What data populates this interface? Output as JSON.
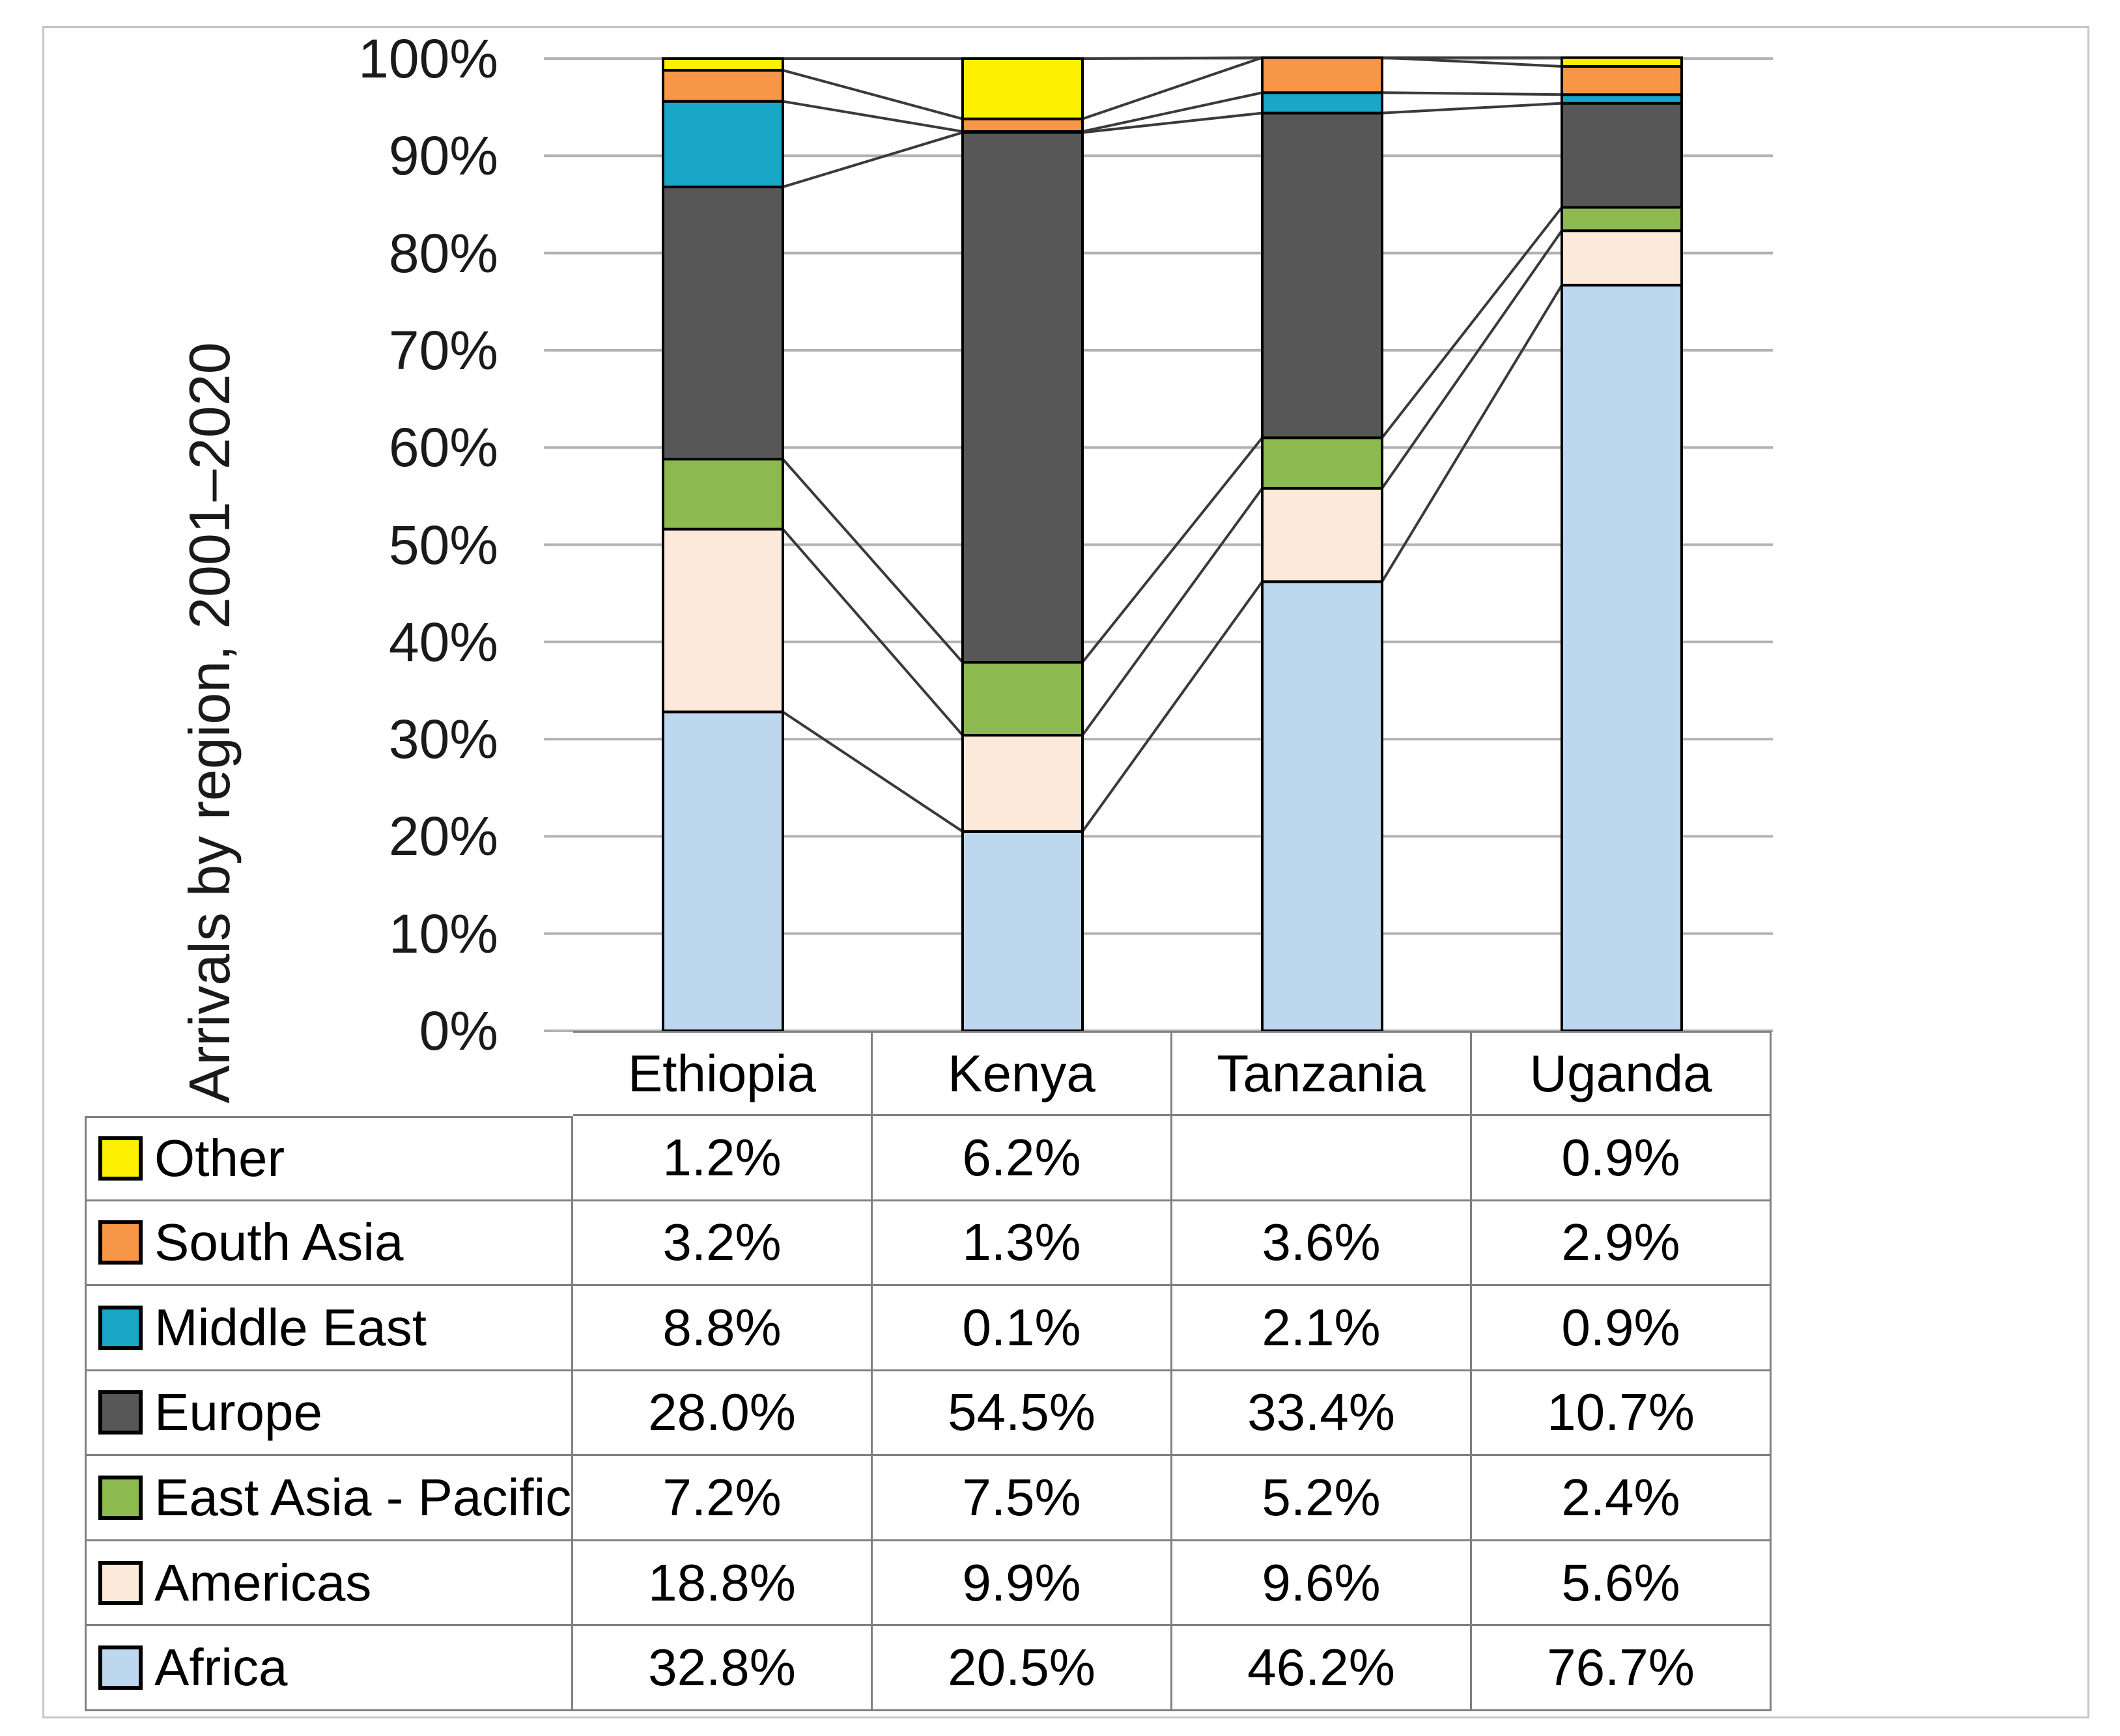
{
  "y_axis": {
    "title": "Arrivals by region, 2001–2020",
    "tick_labels": [
      "0%",
      "10%",
      "20%",
      "30%",
      "40%",
      "50%",
      "60%",
      "70%",
      "80%",
      "90%",
      "100%"
    ]
  },
  "chart_data": {
    "type": "bar",
    "subtype": "100%-stacked-column-with-series-lines",
    "categories": [
      "Ethiopia",
      "Kenya",
      "Tanzania",
      "Uganda"
    ],
    "series": [
      {
        "name": "Africa",
        "color": "#BDD7EE",
        "values": [
          32.8,
          20.5,
          46.2,
          76.7
        ]
      },
      {
        "name": "Americas",
        "color": "#FDE9D9",
        "values": [
          18.8,
          9.9,
          9.6,
          5.6
        ]
      },
      {
        "name": "East Asia - Pacific",
        "color": "#8DBA4F",
        "values": [
          7.2,
          7.5,
          5.2,
          2.4
        ]
      },
      {
        "name": "Europe",
        "color": "#575757",
        "values": [
          28.0,
          54.5,
          33.4,
          10.7
        ]
      },
      {
        "name": "Middle East",
        "color": "#18A7C7",
        "values": [
          8.8,
          0.1,
          2.1,
          0.9
        ]
      },
      {
        "name": "South Asia",
        "color": "#F79646",
        "values": [
          3.2,
          1.3,
          3.6,
          2.9
        ]
      },
      {
        "name": "Other",
        "color": "#FDF000",
        "values": [
          1.2,
          6.2,
          0,
          0.9
        ]
      }
    ],
    "title": "",
    "xlabel": "",
    "ylabel": "Arrivals by region, 2001–2020",
    "ylim": [
      0,
      100
    ],
    "grid": true,
    "gridline_color": "#b2b2b2",
    "series_line_color": "#3a3a3a",
    "bar_border_color": "#000000",
    "legend_position": "table-left"
  },
  "table": {
    "column_headers": [
      "Ethiopia",
      "Kenya",
      "Tanzania",
      "Uganda"
    ],
    "rows": [
      {
        "label": "Other",
        "swatch_color": "#FDF000",
        "values": [
          "1.2%",
          "6.2%",
          "",
          "0.9%"
        ]
      },
      {
        "label": "South Asia",
        "swatch_color": "#F79646",
        "values": [
          "3.2%",
          "1.3%",
          "3.6%",
          "2.9%"
        ]
      },
      {
        "label": "Middle East",
        "swatch_color": "#18A7C7",
        "values": [
          "8.8%",
          "0.1%",
          "2.1%",
          "0.9%"
        ]
      },
      {
        "label": "Europe",
        "swatch_color": "#575757",
        "values": [
          "28.0%",
          "54.5%",
          "33.4%",
          "10.7%"
        ]
      },
      {
        "label": "East Asia - Pacific",
        "swatch_color": "#8DBA4F",
        "values": [
          "7.2%",
          "7.5%",
          "5.2%",
          "2.4%"
        ]
      },
      {
        "label": "Americas",
        "swatch_color": "#FDE9D9",
        "values": [
          "18.8%",
          "9.9%",
          "9.6%",
          "5.6%"
        ]
      },
      {
        "label": "Africa",
        "swatch_color": "#BDD7EE",
        "values": [
          "32.8%",
          "20.5%",
          "46.2%",
          "76.7%"
        ]
      }
    ]
  }
}
